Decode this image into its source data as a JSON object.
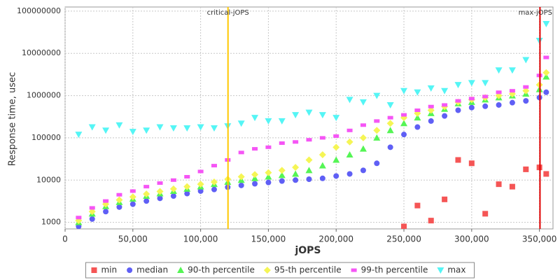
{
  "chart_data": {
    "type": "scatter",
    "x_label": "jOPS",
    "y_label": "Response time, usec",
    "log_y": true,
    "grid": true,
    "xlim": [
      0,
      360000
    ],
    "ylim": [
      700,
      125000000
    ],
    "xticks": [
      0,
      {
        "value": 50000,
        "label": "50,000"
      },
      {
        "value": 100000,
        "label": "100,000"
      },
      {
        "value": 150000,
        "label": "150,000"
      },
      {
        "value": 200000,
        "label": "200,000"
      },
      {
        "value": 250000,
        "label": "250,000"
      },
      {
        "value": 300000,
        "label": "300,000"
      },
      {
        "value": 350000,
        "label": "350,000"
      }
    ],
    "yticks": [
      1000,
      10000,
      100000,
      1000000,
      10000000,
      100000000
    ],
    "annotations": [
      {
        "label": "critical-jOPS",
        "value": 120200,
        "color": "#ffc800"
      },
      {
        "label": "max-jOPS",
        "value": 350400,
        "color": "#e00000"
      }
    ],
    "x": [
      10000,
      20000,
      30000,
      40000,
      50000,
      60000,
      70000,
      80000,
      90000,
      100000,
      110000,
      120000,
      130000,
      140000,
      150000,
      160000,
      170000,
      180000,
      190000,
      200000,
      210000,
      220000,
      230000,
      240000,
      250000,
      260000,
      270000,
      280000,
      290000,
      300000,
      310000,
      320000,
      330000,
      340000,
      350000,
      355000
    ],
    "series": [
      {
        "name": "min",
        "color": "#f55555",
        "marker": "square",
        "values": [
          null,
          null,
          null,
          null,
          null,
          null,
          null,
          null,
          null,
          null,
          null,
          null,
          null,
          null,
          null,
          null,
          null,
          null,
          null,
          null,
          null,
          null,
          null,
          null,
          800,
          2500,
          1100,
          3500,
          30000,
          25000,
          1600,
          8000,
          7000,
          18000,
          20000,
          14000
        ]
      },
      {
        "name": "median",
        "color": "#5f5ff5",
        "marker": "circle",
        "values": [
          800,
          1200,
          1800,
          2300,
          2700,
          3200,
          3700,
          4200,
          4800,
          5500,
          6000,
          6800,
          7500,
          8200,
          8800,
          9500,
          10000,
          10500,
          11000,
          12500,
          14000,
          17000,
          25000,
          60000,
          120000,
          180000,
          250000,
          330000,
          450000,
          520000,
          560000,
          600000,
          680000,
          750000,
          900000,
          1200000
        ]
      },
      {
        "name": "90-th percentile",
        "color": "#55f555",
        "marker": "triangle",
        "values": [
          1000,
          1600,
          2400,
          3000,
          3600,
          4200,
          4800,
          5500,
          6200,
          7000,
          8000,
          9000,
          10000,
          11000,
          12000,
          13000,
          14000,
          17000,
          22000,
          30000,
          40000,
          55000,
          100000,
          150000,
          220000,
          300000,
          380000,
          480000,
          650000,
          700000,
          800000,
          900000,
          1000000,
          1100000,
          1400000,
          2800000
        ]
      },
      {
        "name": "95-th percentile",
        "color": "#f5f555",
        "marker": "diamond",
        "values": [
          1100,
          1800,
          2700,
          3400,
          4000,
          4700,
          5400,
          6200,
          7000,
          8000,
          9000,
          10500,
          12000,
          13500,
          15000,
          17000,
          20000,
          30000,
          40000,
          60000,
          80000,
          100000,
          150000,
          220000,
          300000,
          380000,
          450000,
          550000,
          700000,
          800000,
          900000,
          1000000,
          1100000,
          1300000,
          1800000,
          3500000
        ]
      },
      {
        "name": "99-th percentile",
        "color": "#f555f5",
        "marker": "rect",
        "values": [
          1300,
          2200,
          3200,
          4500,
          5500,
          7000,
          8500,
          10000,
          12000,
          16000,
          22000,
          30000,
          45000,
          55000,
          60000,
          75000,
          80000,
          90000,
          100000,
          110000,
          150000,
          200000,
          250000,
          300000,
          350000,
          450000,
          550000,
          600000,
          750000,
          850000,
          950000,
          1200000,
          1300000,
          1600000,
          3000000,
          8000000
        ]
      },
      {
        "name": "max",
        "color": "#55f5f5",
        "marker": "triangle-down",
        "values": [
          120000,
          180000,
          150000,
          200000,
          140000,
          150000,
          180000,
          170000,
          170000,
          180000,
          170000,
          190000,
          220000,
          300000,
          250000,
          250000,
          350000,
          400000,
          350000,
          300000,
          800000,
          700000,
          1000000,
          600000,
          1300000,
          1200000,
          1500000,
          1300000,
          1800000,
          2000000,
          2000000,
          4000000,
          4000000,
          7000000,
          20000000,
          50000000
        ]
      }
    ]
  }
}
